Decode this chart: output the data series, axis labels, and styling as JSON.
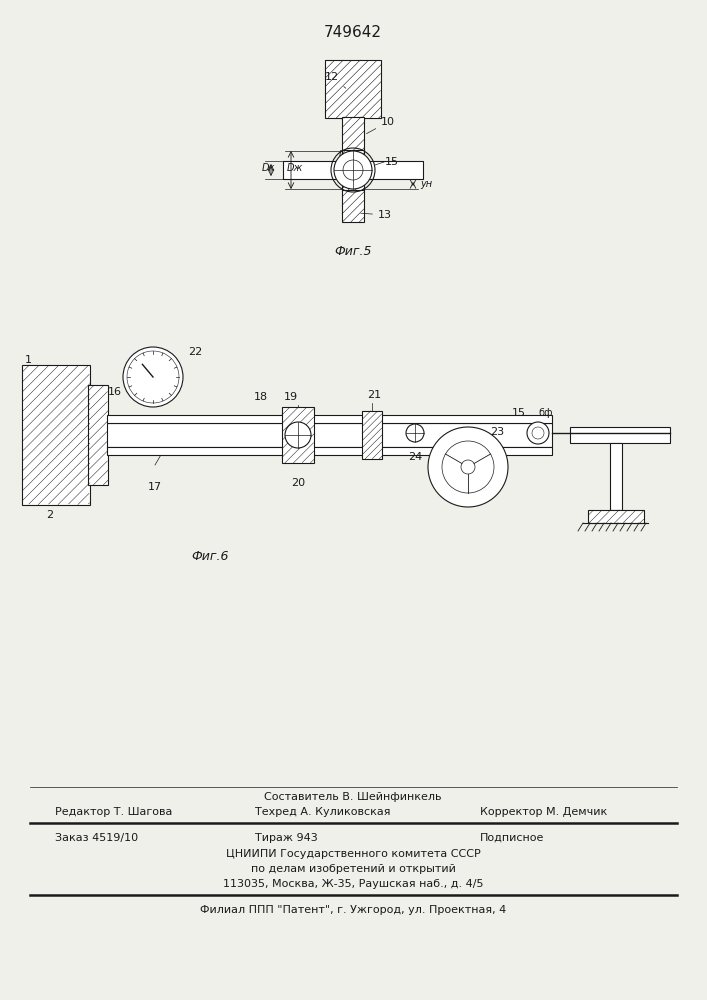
{
  "patent_number": "749642",
  "fig5_caption": "Фиг.5",
  "fig6_caption": "Фиг.6",
  "footer_line1": "Составитель В. Шейнфинкель",
  "footer_line2_left": "Редактор Т. Шагова",
  "footer_line2_mid": "Техред А. Куликовская",
  "footer_line2_right": "Корректор М. Демчик",
  "footer_line3_left": "Заказ 4519/10",
  "footer_line3_mid": "Тираж 943",
  "footer_line3_right": "Подписное",
  "footer_line4": "ЦНИИПИ Государственного комитета СССР",
  "footer_line5": "по делам изобретений и открытий",
  "footer_line6": "113035, Москва, Ж-35, Раушская наб., д. 4/5",
  "footer_line7": "Филиал ППП \"Патент\", г. Ужгород, ул. Проектная, 4",
  "bg_color": "#f0f0eb",
  "line_color": "#1a1a1a"
}
